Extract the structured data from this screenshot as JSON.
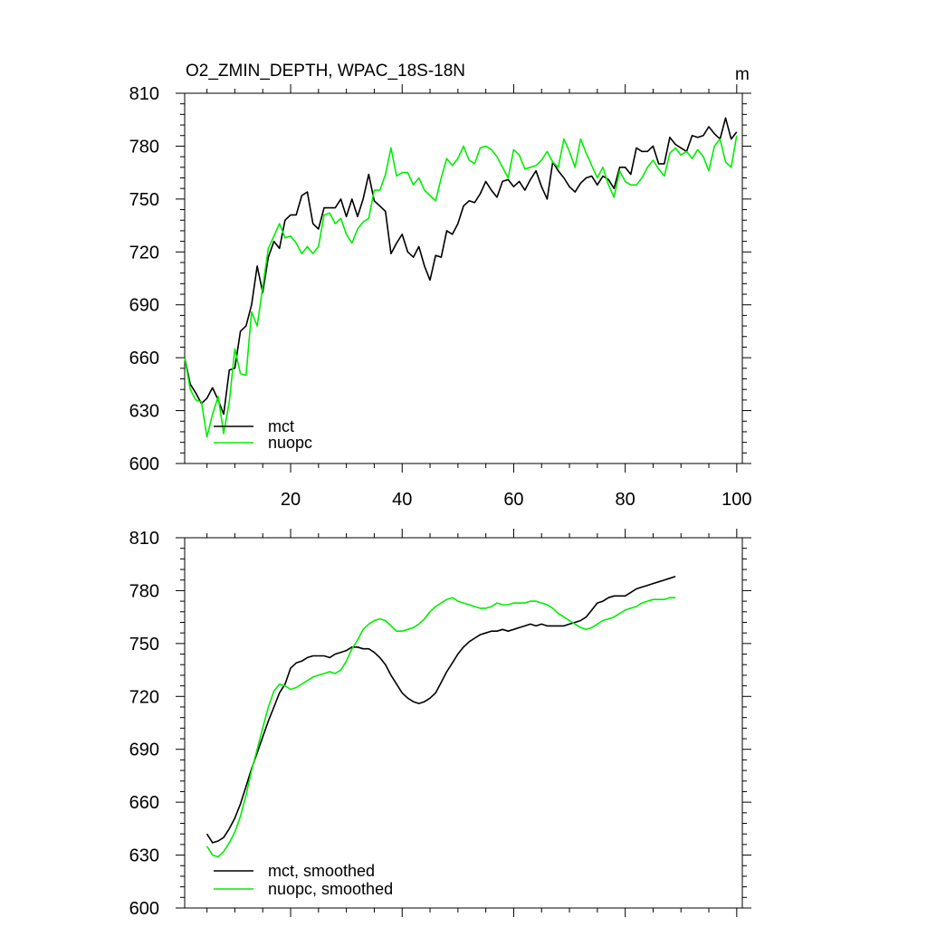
{
  "chart_data": [
    {
      "type": "line",
      "title": "O2_ZMIN_DEPTH, WPAC_18S-18N",
      "units": "m",
      "xlim": [
        1,
        101
      ],
      "ylim": [
        600,
        810
      ],
      "xticks": [
        20,
        40,
        60,
        80,
        100
      ],
      "yticks": [
        600,
        630,
        660,
        690,
        720,
        750,
        780,
        810
      ],
      "legend_position": "bottom-left",
      "series": [
        {
          "name": "mct",
          "color": "#000000",
          "values": [
            660,
            645,
            640,
            634,
            637,
            643,
            636,
            628,
            653,
            654,
            675,
            678,
            690,
            712,
            697,
            717,
            726,
            722,
            738,
            741,
            741,
            752,
            754,
            736,
            733,
            745,
            745,
            745,
            750,
            740,
            750,
            740,
            750,
            764,
            749,
            746,
            743,
            719,
            725,
            730,
            720,
            717,
            723,
            712,
            704,
            718,
            717,
            732,
            730,
            736,
            746,
            749,
            748,
            753,
            760,
            755,
            751,
            760,
            761,
            757,
            760,
            755,
            761,
            766,
            757,
            750,
            771,
            766,
            762,
            757,
            754,
            759,
            762,
            763,
            758,
            763,
            761,
            756,
            768,
            768,
            764,
            779,
            777,
            777,
            780,
            770,
            770,
            785,
            781,
            779,
            777,
            786,
            785,
            786,
            791,
            787,
            784,
            796,
            784,
            788
          ]
        },
        {
          "name": "nuopc",
          "color": "#00ee00",
          "values": [
            660,
            642,
            636,
            635,
            615,
            628,
            638,
            617,
            635,
            665,
            651,
            650,
            686,
            678,
            700,
            722,
            729,
            736,
            728,
            729,
            725,
            719,
            723,
            719,
            723,
            741,
            742,
            736,
            739,
            730,
            725,
            733,
            737,
            739,
            755,
            755,
            764,
            779,
            763,
            765,
            765,
            758,
            762,
            755,
            752,
            749,
            762,
            773,
            769,
            773,
            780,
            772,
            770,
            779,
            780,
            778,
            774,
            768,
            762,
            778,
            775,
            767,
            768,
            769,
            772,
            777,
            771,
            768,
            784,
            777,
            768,
            784,
            776,
            769,
            762,
            768,
            758,
            751,
            766,
            760,
            758,
            758,
            762,
            768,
            772,
            767,
            763,
            776,
            779,
            775,
            777,
            773,
            778,
            774,
            766,
            780,
            784,
            771,
            768,
            786
          ]
        }
      ]
    },
    {
      "type": "line",
      "title": "",
      "units": "",
      "xlim": [
        1,
        101
      ],
      "ylim": [
        600,
        810
      ],
      "xticks": [
        20,
        40,
        60,
        80,
        100
      ],
      "yticks": [
        600,
        630,
        660,
        690,
        720,
        750,
        780,
        810
      ],
      "legend_position": "bottom-left",
      "series": [
        {
          "name": "mct, smoothed",
          "color": "#000000",
          "start_x": 5,
          "values": [
            642,
            637,
            638,
            640,
            645,
            651,
            659,
            669,
            679,
            688,
            697,
            706,
            714,
            722,
            727,
            736,
            739,
            740,
            742,
            743,
            743,
            743,
            742,
            744,
            745,
            746,
            748,
            748,
            747,
            747,
            745,
            742,
            738,
            732,
            727,
            722,
            719,
            717,
            716,
            717,
            719,
            722,
            728,
            734,
            739,
            744,
            748,
            751,
            753,
            755,
            756,
            757,
            757,
            758,
            757,
            758,
            759,
            760,
            761,
            760,
            761,
            760,
            760,
            760,
            760,
            761,
            762,
            763,
            765,
            769,
            773,
            774,
            776,
            777,
            777,
            777,
            779,
            781,
            782,
            783,
            784,
            785,
            786,
            787,
            788
          ]
        },
        {
          "name": "nuopc, smoothed",
          "color": "#00ee00",
          "start_x": 5,
          "values": [
            635,
            630,
            629,
            632,
            637,
            643,
            652,
            664,
            678,
            690,
            702,
            714,
            723,
            727,
            726,
            724,
            725,
            727,
            729,
            731,
            732,
            733,
            734,
            733,
            735,
            740,
            747,
            752,
            758,
            761,
            763,
            764,
            763,
            760,
            757,
            757,
            758,
            759,
            761,
            764,
            768,
            771,
            773,
            775,
            776,
            774,
            773,
            772,
            771,
            770,
            770,
            771,
            773,
            772,
            772,
            773,
            773,
            773,
            774,
            774,
            773,
            772,
            770,
            767,
            765,
            763,
            761,
            759,
            758,
            759,
            761,
            763,
            764,
            765,
            767,
            769,
            770,
            771,
            773,
            774,
            775,
            775,
            775,
            776,
            776
          ]
        }
      ]
    }
  ]
}
